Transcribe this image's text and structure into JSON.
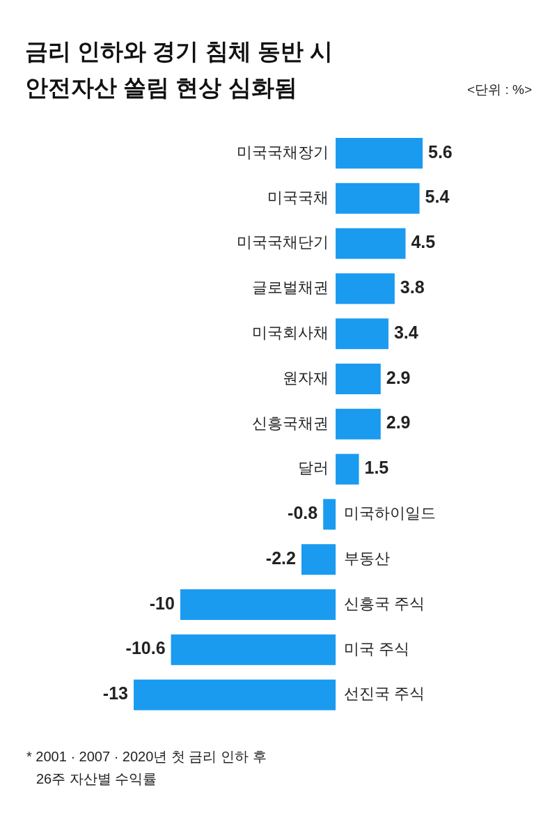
{
  "chart_data": {
    "type": "bar",
    "orientation": "horizontal",
    "title": "금리 인하와 경기 침체 동반 시\n안전자산 쏠림 현상 심화됨",
    "subtitle": "<단위 : %>",
    "categories": [
      "미국국채장기",
      "미국국채",
      "미국국채단기",
      "글로벌채권",
      "미국회사채",
      "원자재",
      "신흥국채권",
      "달러",
      "미국하이일드",
      "부동산",
      "신흥국 주식",
      "미국 주식",
      "선진국 주식"
    ],
    "values": [
      5.6,
      5.4,
      4.5,
      3.8,
      3.4,
      2.9,
      2.9,
      1.5,
      -0.8,
      -2.2,
      -10,
      -10.6,
      -13
    ],
    "color": "#1a9bf0",
    "data_labels": true,
    "annotations": [
      "* 2001 · 2007 · 2020년 첫 금리 인하 후\n26주 자산별 수익률"
    ]
  }
}
